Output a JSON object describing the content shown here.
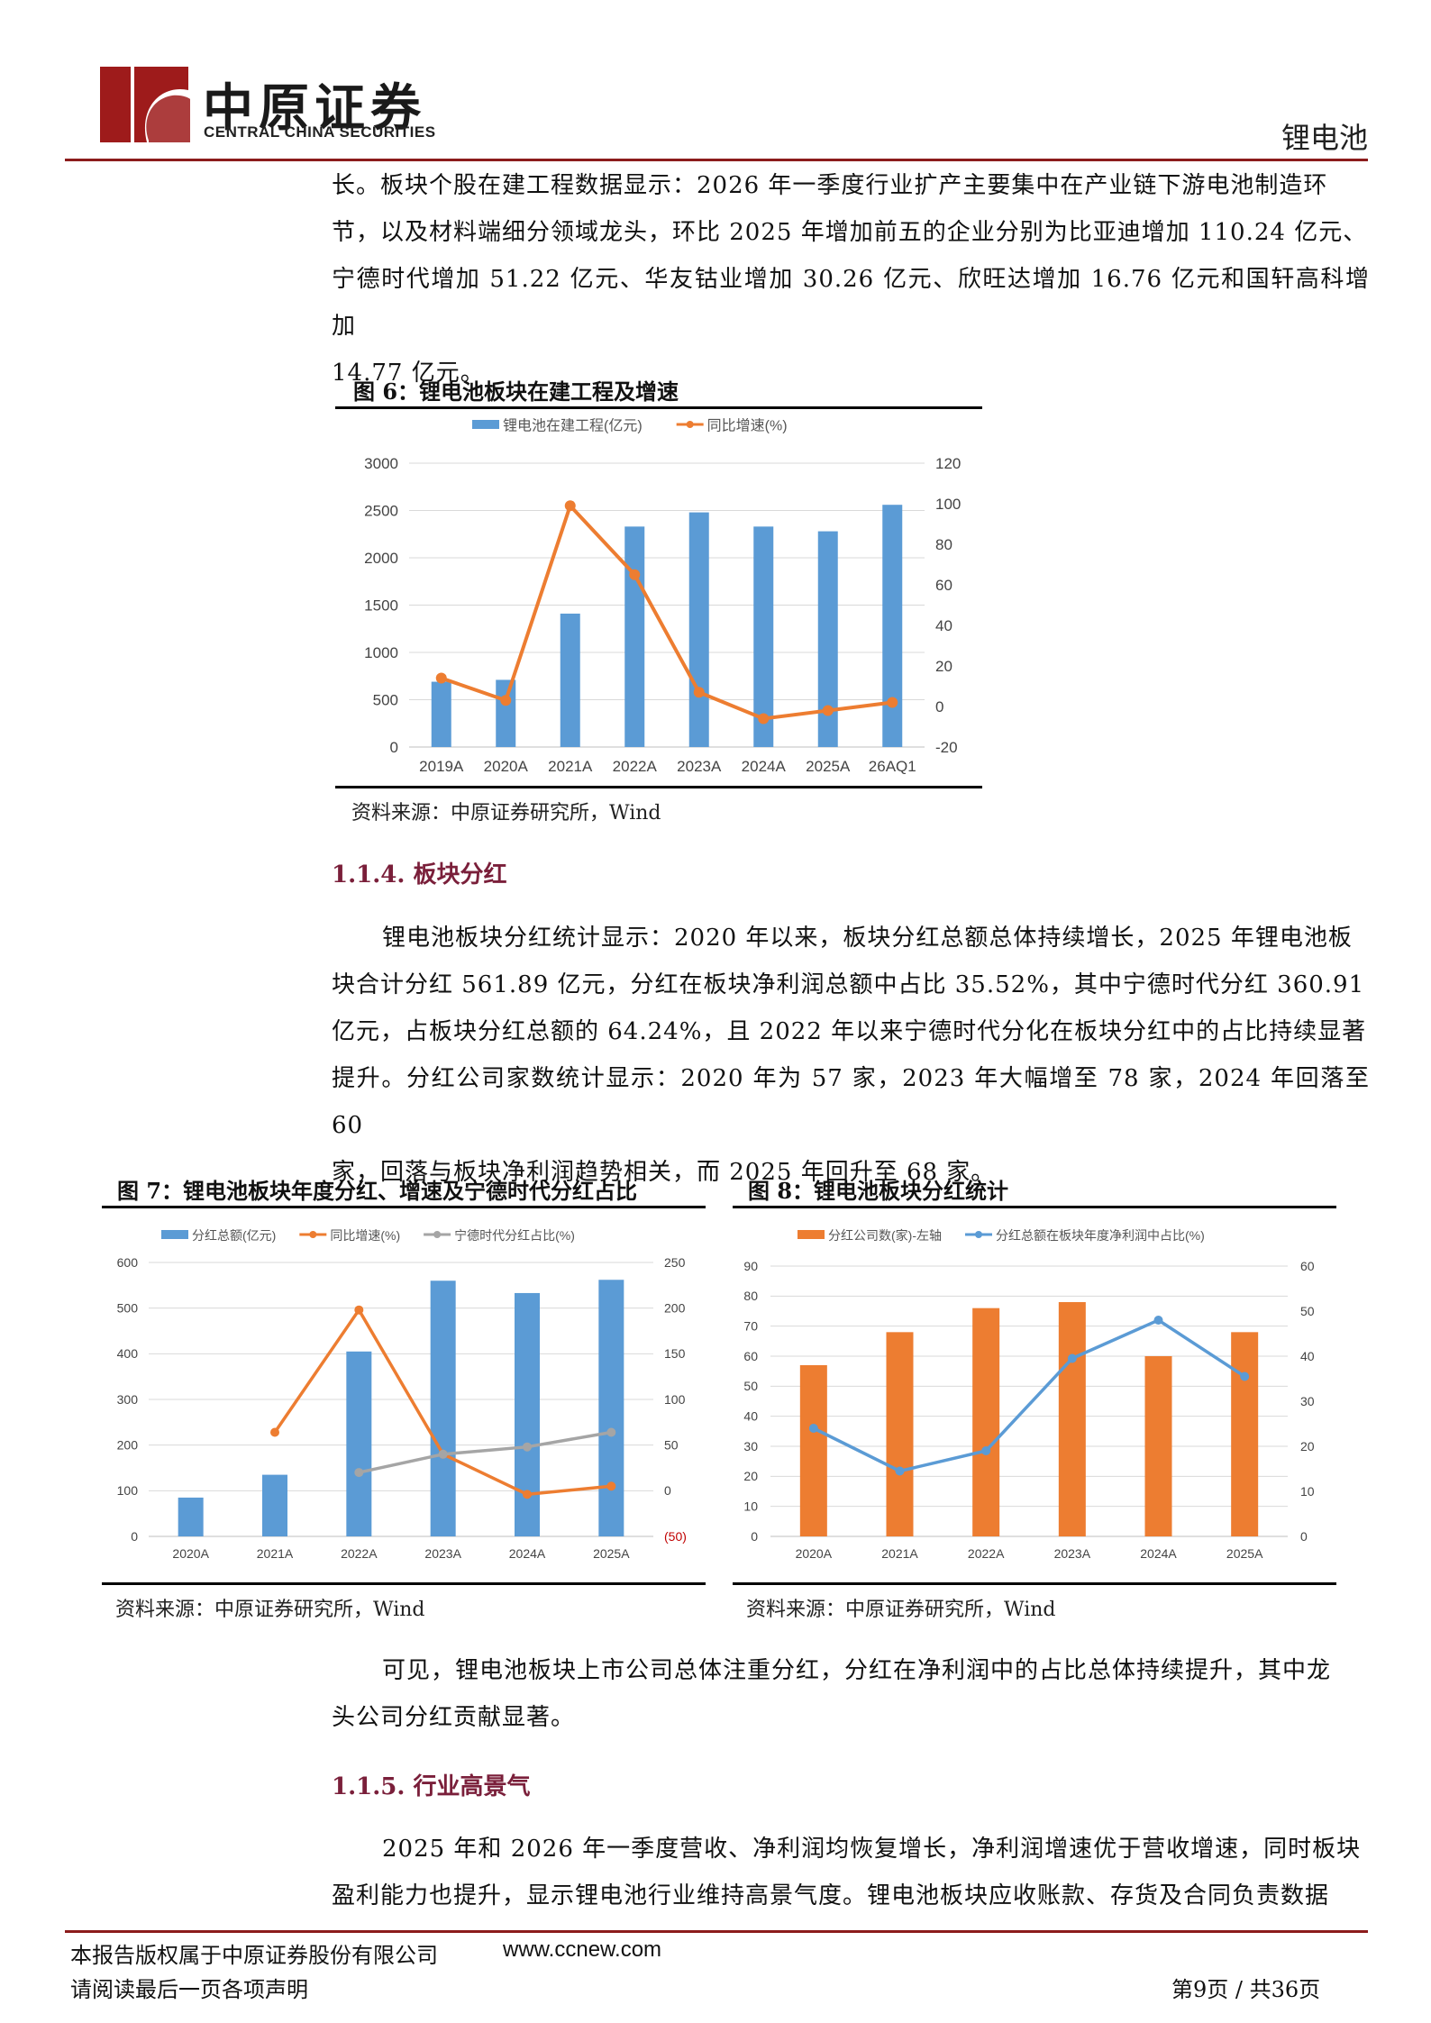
{
  "header": {
    "brand_cn": "中原证券",
    "brand_en": "CENTRAL CHINA SECURITIES",
    "section": "锂电池"
  },
  "intro_para": [
    "长。板块个股在建工程数据显示：2026 年一季度行业扩产主要集中在产业链下游电池制造环",
    "节，以及材料端细分领域龙头，环比 2025 年增加前五的企业分别为比亚迪增加 110.24 亿元、",
    "宁德时代增加 51.22 亿元、华友钴业增加 30.26 亿元、欣旺达增加 16.76 亿元和国轩高科增加",
    "14.77 亿元。"
  ],
  "fig6": {
    "title": "图 6：锂电池板块在建工程及增速",
    "source": "资料来源：中原证券研究所，Wind"
  },
  "sec114": {
    "heading": "1.1.4. 板块分红",
    "para": [
      "锂电池板块分红统计显示：2020 年以来，板块分红总额总体持续增长，2025 年锂电池板",
      "块合计分红 561.89 亿元，分红在板块净利润总额中占比 35.52%，其中宁德时代分红 360.91",
      "亿元，占板块分红总额的 64.24%，且 2022 年以来宁德时代分化在板块分红中的占比持续显著",
      "提升。分红公司家数统计显示：2020 年为 57 家，2023 年大幅增至 78 家，2024 年回落至 60",
      "家，回落与板块净利润趋势相关，而 2025 年回升至 68 家。"
    ]
  },
  "fig7": {
    "title": "图 7：锂电池板块年度分红、增速及宁德时代分红占比",
    "source": "资料来源：中原证券研究所，Wind"
  },
  "fig8": {
    "title": "图 8：锂电池板块分红统计",
    "source": "资料来源：中原证券研究所，Wind"
  },
  "conclusion_para": [
    "可见，锂电池板块上市公司总体注重分红，分红在净利润中的占比总体持续提升，其中龙",
    "头公司分红贡献显著。"
  ],
  "sec115": {
    "heading": "1.1.5. 行业高景气",
    "para": [
      "2025 年和 2026 年一季度营收、净利润均恢复增长，净利润增速优于营收增速，同时板块",
      "盈利能力也提升，显示锂电池行业维持高景气度。锂电池板块应收账款、存货及合同负责数据"
    ]
  },
  "footer": {
    "copyright": "本报告版权属于中原证券股份有限公司",
    "url": "www.ccnew.com",
    "disclaimer": "请阅读最后一页各项声明",
    "page": "第9页  /  共36页"
  },
  "chart_data": [
    {
      "type": "bar+line",
      "id": "fig6",
      "categories": [
        "2019A",
        "2020A",
        "2021A",
        "2022A",
        "2023A",
        "2024A",
        "2025A",
        "26AQ1"
      ],
      "series": [
        {
          "name": "锂电池在建工程(亿元)",
          "kind": "bar",
          "axis": "left",
          "color": "#5b9bd5",
          "values": [
            690,
            710,
            1410,
            2330,
            2480,
            2330,
            2280,
            2560
          ]
        },
        {
          "name": "同比增速(%)",
          "kind": "line",
          "axis": "right",
          "color": "#ed7d31",
          "values": [
            14,
            3,
            99,
            65,
            7,
            -6,
            -2,
            2
          ]
        }
      ],
      "y_left": {
        "min": 0,
        "max": 3000,
        "ticks": [
          "0",
          "500",
          "1000",
          "1500",
          "2000",
          "2500",
          "3000"
        ]
      },
      "y_right": {
        "min": -20,
        "max": 120,
        "ticks": [
          "-20",
          "0",
          "20",
          "40",
          "60",
          "80",
          "100",
          "120"
        ]
      },
      "grid": true,
      "legend": "top"
    },
    {
      "type": "bar+line",
      "id": "fig7",
      "categories": [
        "2020A",
        "2021A",
        "2022A",
        "2023A",
        "2024A",
        "2025A"
      ],
      "series": [
        {
          "name": "分红总额(亿元)",
          "kind": "bar",
          "axis": "left",
          "color": "#5b9bd5",
          "values": [
            85,
            135,
            405,
            560,
            533,
            562
          ]
        },
        {
          "name": "同比增速(%)",
          "kind": "line",
          "axis": "right",
          "color": "#ed7d31",
          "values": [
            null,
            64,
            198,
            40,
            -4,
            5
          ]
        },
        {
          "name": "宁德时代分红占比(%)",
          "kind": "line",
          "axis": "right",
          "color": "#a5a5a5",
          "values": [
            null,
            null,
            20,
            40,
            48,
            64
          ]
        }
      ],
      "y_left": {
        "min": 0,
        "max": 600,
        "ticks": [
          "0",
          "100",
          "200",
          "300",
          "400",
          "500",
          "600"
        ]
      },
      "y_right": {
        "min": -50,
        "max": 250,
        "ticks": [
          "(50)",
          "0",
          "50",
          "100",
          "150",
          "200",
          "250"
        ]
      },
      "grid": true,
      "legend": "top"
    },
    {
      "type": "bar+line",
      "id": "fig8",
      "categories": [
        "2020A",
        "2021A",
        "2022A",
        "2023A",
        "2024A",
        "2025A"
      ],
      "series": [
        {
          "name": "分红公司数(家)-左轴",
          "kind": "bar",
          "axis": "left",
          "color": "#ed7d31",
          "values": [
            57,
            68,
            76,
            78,
            60,
            68
          ]
        },
        {
          "name": "分红总额在板块年度净利润中占比(%)",
          "kind": "line",
          "axis": "right",
          "color": "#5b9bd5",
          "values": [
            24,
            14.5,
            19,
            39.5,
            48,
            35.5
          ]
        }
      ],
      "y_left": {
        "min": 0,
        "max": 90,
        "ticks": [
          "0",
          "10",
          "20",
          "30",
          "40",
          "50",
          "60",
          "70",
          "80",
          "90"
        ]
      },
      "y_right": {
        "min": 0,
        "max": 60,
        "ticks": [
          "0",
          "10",
          "20",
          "30",
          "40",
          "50",
          "60"
        ]
      },
      "grid": true,
      "legend": "top"
    }
  ]
}
